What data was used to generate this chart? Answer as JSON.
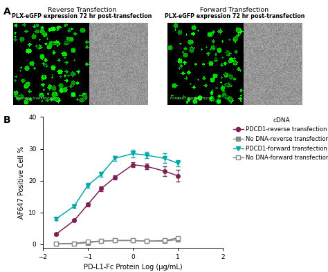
{
  "panel_A": {
    "left_title": "Reverse Transfection",
    "left_subtitle": "PLX-eGFP expression 72 hr post-transfection",
    "right_title": "Forward Transfection",
    "right_subtitle": "PLX-eGFP expression 72 hr post-transfection"
  },
  "panel_B": {
    "xlabel": "PD-L1-Fc Protein Log (µg/mL)",
    "ylabel": "AF647 Positive Cell %",
    "legend_title": "cDNA",
    "xlim": [
      -2,
      2
    ],
    "ylim": [
      -1,
      40
    ],
    "yticks": [
      0,
      10,
      20,
      30,
      40
    ],
    "xticks": [
      -2,
      -1,
      0,
      1,
      2
    ],
    "series": [
      {
        "label": "PDCD1-reverse transfection",
        "color": "#7B2252",
        "marker": "o",
        "marker_fill": "#7B2252",
        "line_style": "-",
        "x": [
          -1.7,
          -1.3,
          -1.0,
          -0.7,
          -0.4,
          0.0,
          0.3,
          0.7,
          1.0
        ],
        "y": [
          3.2,
          7.5,
          12.5,
          17.5,
          21.0,
          25.0,
          24.5,
          23.0,
          21.5
        ],
        "yerr": [
          0.3,
          0.4,
          0.5,
          0.8,
          0.7,
          0.8,
          0.9,
          1.5,
          1.8
        ]
      },
      {
        "label": "No DNA-reverse transfection",
        "color": "#888888",
        "marker": "s",
        "marker_fill": "#888888",
        "line_style": "-",
        "x": [
          -1.7,
          -1.3,
          -1.0,
          -0.7,
          -0.4,
          0.0,
          0.3,
          0.7,
          1.0
        ],
        "y": [
          0.2,
          0.2,
          0.5,
          1.0,
          1.2,
          1.2,
          1.0,
          1.0,
          1.5
        ],
        "yerr": [
          0.1,
          0.1,
          0.1,
          0.1,
          0.1,
          0.1,
          0.1,
          0.1,
          0.2
        ]
      },
      {
        "label": "PDCD1-forward transfection",
        "color": "#00A8A8",
        "marker": "v",
        "marker_fill": "#00A8A8",
        "line_style": "-",
        "x": [
          -1.7,
          -1.3,
          -1.0,
          -0.7,
          -0.4,
          0.0,
          0.3,
          0.7,
          1.0
        ],
        "y": [
          8.0,
          12.0,
          18.5,
          22.0,
          27.0,
          28.5,
          28.0,
          27.0,
          25.5
        ],
        "yerr": [
          0.5,
          0.5,
          0.8,
          0.7,
          0.8,
          1.2,
          1.0,
          1.5,
          1.0
        ]
      },
      {
        "label": "No DNA-forward transfection",
        "color": "#888888",
        "marker": "s",
        "marker_fill": "white",
        "line_style": "-",
        "x": [
          -1.7,
          -1.3,
          -1.0,
          -0.7,
          -0.4,
          0.0,
          0.3,
          0.7,
          1.0
        ],
        "y": [
          0.2,
          0.3,
          0.8,
          1.0,
          1.2,
          1.2,
          1.0,
          1.2,
          2.0
        ],
        "yerr": [
          0.1,
          0.1,
          0.1,
          0.1,
          0.1,
          0.1,
          0.1,
          0.1,
          0.3
        ]
      }
    ]
  },
  "bg_color": "#ffffff"
}
